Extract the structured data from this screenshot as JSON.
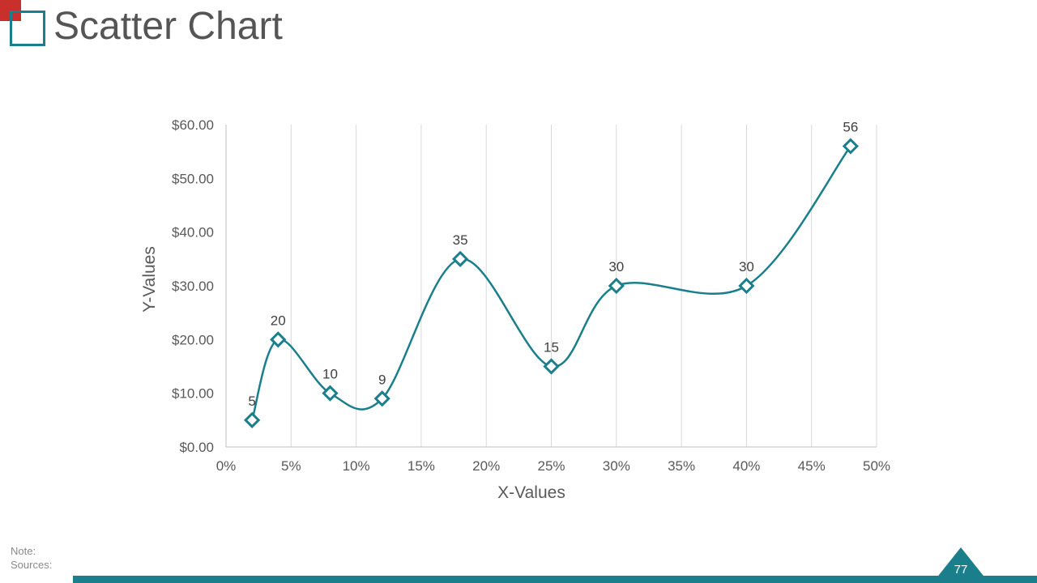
{
  "header": {
    "title": "Scatter Chart"
  },
  "footer": {
    "note_label": "Note:",
    "sources_label": "Sources:",
    "page_number": "77"
  },
  "colors": {
    "accent": "#1a7f8b",
    "corner": "#c9302c",
    "title_text": "#555555",
    "grid": "#d9d9d9"
  },
  "chart_data": {
    "type": "scatter",
    "xlabel": "X-Values",
    "ylabel": "Y-Values",
    "xlim": [
      0,
      0.5
    ],
    "ylim": [
      0,
      60
    ],
    "x_ticks": [
      0,
      0.05,
      0.1,
      0.15,
      0.2,
      0.25,
      0.3,
      0.35,
      0.4,
      0.45,
      0.5
    ],
    "x_tick_labels": [
      "0%",
      "5%",
      "10%",
      "15%",
      "20%",
      "25%",
      "30%",
      "35%",
      "40%",
      "45%",
      "50%"
    ],
    "y_ticks": [
      0,
      10,
      20,
      30,
      40,
      50,
      60
    ],
    "y_tick_labels": [
      "$0.00",
      "$10.00",
      "$20.00",
      "$30.00",
      "$40.00",
      "$50.00",
      "$60.00"
    ],
    "grid": "vertical",
    "smooth_line": true,
    "marker": "diamond",
    "x": [
      0.02,
      0.04,
      0.08,
      0.12,
      0.18,
      0.25,
      0.3,
      0.4,
      0.48
    ],
    "y": [
      5,
      20,
      10,
      9,
      35,
      15,
      30,
      30,
      56
    ],
    "data_labels": [
      "5",
      "20",
      "10",
      "9",
      "35",
      "15",
      "30",
      "30",
      "56"
    ]
  }
}
